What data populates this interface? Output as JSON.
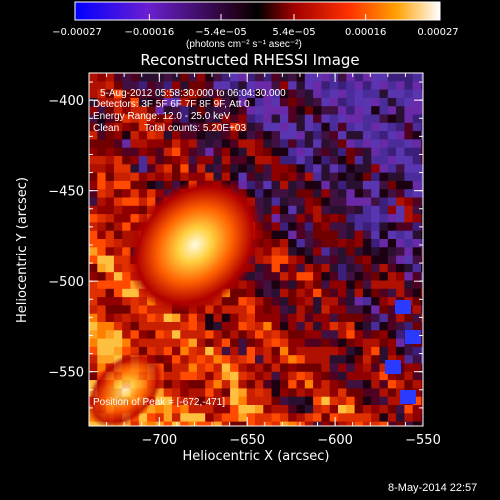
{
  "chart_data": {
    "type": "heatmap",
    "title": "Reconstructed RHESSI Image",
    "xlabel": "Heliocentric X (arcsec)",
    "ylabel": "Heliocentric Y (arcsec)",
    "xlim": [
      -740,
      -550
    ],
    "ylim": [
      -580,
      -385
    ],
    "xticks": [
      -700,
      -650,
      -600,
      -550
    ],
    "xtick_labels": [
      "−700",
      "−650",
      "−600",
      "−550"
    ],
    "yticks": [
      -400,
      -450,
      -500,
      -550
    ],
    "ytick_labels": [
      "−400",
      "−450",
      "−500",
      "−550"
    ],
    "colorbar": {
      "min": -0.00027,
      "max": 0.00027,
      "ticks": [
        -0.00027,
        -0.00016,
        -5.4e-05,
        5.4e-05,
        0.00016,
        0.00027
      ],
      "tick_labels": [
        "−0.00027",
        "−0.00016",
        "−5.4e−05",
        "5.4e−05",
        "0.00016",
        "0.00027"
      ],
      "unit_label": "(photons cm⁻² s⁻¹ asec⁻²)",
      "colormap": "blue-purple-black-red-yellow-white"
    },
    "peak": [
      -672,
      -471
    ],
    "grid": false
  },
  "annotations": {
    "time_range": "5-Aug-2012 05:58:30.000 to 06:04:30.000",
    "detectors": "Detectors: 3F 5F 6F 7F 8F 9F, Att 0",
    "energy_range": "Energy Range: 12.0 - 25.0 keV",
    "algorithm": "Clean",
    "total_counts": "Total counts: 5.20E+03",
    "peak_position": "Position of Peak = [-672,-471]"
  },
  "footer": {
    "timestamp": "8-May-2014 22:57"
  }
}
